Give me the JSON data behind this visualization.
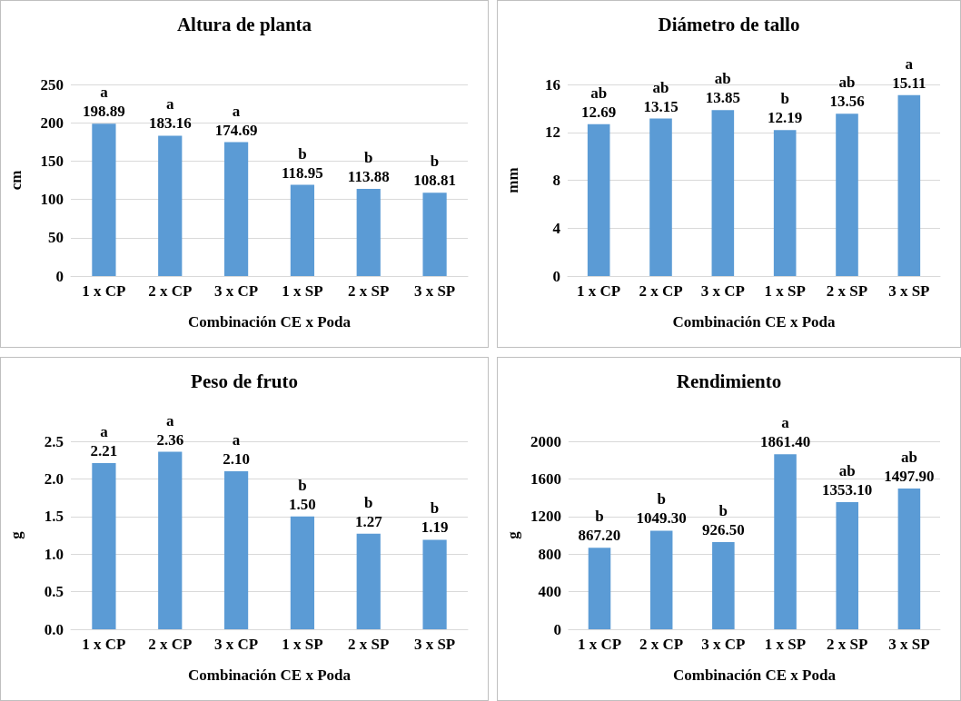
{
  "chart_data": [
    {
      "type": "bar",
      "title": "Altura de planta",
      "xlabel": "Combinación CE x Poda",
      "ylabel": "cm",
      "categories": [
        "1 x CP",
        "2 x CP",
        "3 x CP",
        "1 x SP",
        "2 x SP",
        "3 x SP"
      ],
      "values": [
        198.89,
        183.16,
        174.69,
        118.95,
        113.88,
        108.81
      ],
      "value_labels": [
        "198.89",
        "183.16",
        "174.69",
        "118.95",
        "113.88",
        "108.81"
      ],
      "color": "#5b9bd5",
      "ylim": [
        0,
        250
      ],
      "yticks": [
        0,
        50,
        100,
        150,
        200,
        250
      ],
      "grid": "y",
      "annotations": [
        {
          "text": "a",
          "x": "1 x CP",
          "y": 198.89
        },
        {
          "text": "a",
          "x": "2 x CP",
          "y": 183.16
        },
        {
          "text": "a",
          "x": "3 x CP",
          "y": 174.69
        },
        {
          "text": "b",
          "x": "1 x SP",
          "y": 118.95
        },
        {
          "text": "b",
          "x": "2 x SP",
          "y": 113.88
        },
        {
          "text": "b",
          "x": "3 x SP",
          "y": 108.81
        }
      ]
    },
    {
      "type": "bar",
      "title": "Diámetro de tallo",
      "xlabel": "Combinación CE x Poda",
      "ylabel": "mm",
      "categories": [
        "1 x CP",
        "2 x CP",
        "3 x CP",
        "1 x SP",
        "2 x SP",
        "3 x SP"
      ],
      "values": [
        12.69,
        13.15,
        13.85,
        12.19,
        13.56,
        15.11
      ],
      "value_labels": [
        "12.69",
        "13.15",
        "13.85",
        "12.19",
        "13.56",
        "15.11"
      ],
      "color": "#5b9bd5",
      "ylim": [
        0,
        16
      ],
      "yticks": [
        0,
        4,
        8,
        12,
        16
      ],
      "grid": "y",
      "annotations": [
        {
          "text": "ab",
          "x": "1 x CP",
          "y": 12.69
        },
        {
          "text": "ab",
          "x": "2 x CP",
          "y": 13.15
        },
        {
          "text": "ab",
          "x": "3 x CP",
          "y": 13.85
        },
        {
          "text": "b",
          "x": "1 x SP",
          "y": 12.19
        },
        {
          "text": "ab",
          "x": "2 x SP",
          "y": 13.56
        },
        {
          "text": "a",
          "x": "3 x SP",
          "y": 15.11
        }
      ]
    },
    {
      "type": "bar",
      "title": "Peso de fruto",
      "xlabel": "Combinación CE x Poda",
      "ylabel": "g",
      "categories": [
        "1 x CP",
        "2 x CP",
        "3 x CP",
        "1 x SP",
        "2 x SP",
        "3 x SP"
      ],
      "values": [
        2.21,
        2.36,
        2.1,
        1.5,
        1.27,
        1.19
      ],
      "value_labels": [
        "2.21",
        "2.36",
        "2.10",
        "1.50",
        "1.27",
        "1.19"
      ],
      "color": "#5b9bd5",
      "ylim": [
        0,
        2.5
      ],
      "yticks": [
        {
          "value": 0,
          "label": "0.0"
        },
        0.5,
        {
          "value": 1,
          "label": "1.0"
        },
        1.5,
        {
          "value": 2,
          "label": "2.0"
        },
        2.5
      ],
      "grid": "y",
      "annotations": [
        {
          "text": "a",
          "x": "1 x CP",
          "y": 2.21
        },
        {
          "text": "a",
          "x": "2 x CP",
          "y": 2.36
        },
        {
          "text": "a",
          "x": "3 x CP",
          "y": 2.1
        },
        {
          "text": "b",
          "x": "1 x SP",
          "y": 1.5
        },
        {
          "text": "b",
          "x": "2 x SP",
          "y": 1.27
        },
        {
          "text": "b",
          "x": "3 x SP",
          "y": 1.19
        }
      ]
    },
    {
      "type": "bar",
      "title": "Rendimiento",
      "xlabel": "Combinación CE x Poda",
      "ylabel": "g",
      "categories": [
        "1 x CP",
        "2 x CP",
        "3 x CP",
        "1 x SP",
        "2 x SP",
        "3 x SP"
      ],
      "values": [
        867.2,
        1049.3,
        926.5,
        1861.4,
        1353.1,
        1497.9
      ],
      "value_labels": [
        "867.20",
        "1049.30",
        "926.50",
        "1861.40",
        "1353.10",
        "1497.90"
      ],
      "color": "#5b9bd5",
      "ylim": [
        0,
        2000
      ],
      "yticks": [
        0,
        400,
        800,
        1200,
        1600,
        2000
      ],
      "grid": "y",
      "annotations": [
        {
          "text": "b",
          "x": "1 x CP",
          "y": 867.2
        },
        {
          "text": "b",
          "x": "2 x CP",
          "y": 1049.3
        },
        {
          "text": "b",
          "x": "3 x CP",
          "y": 926.5
        },
        {
          "text": "a",
          "x": "1 x SP",
          "y": 1861.4
        },
        {
          "text": "ab",
          "x": "2 x SP",
          "y": 1353.1
        },
        {
          "text": "ab",
          "x": "3 x SP",
          "y": 1497.9
        }
      ]
    }
  ]
}
